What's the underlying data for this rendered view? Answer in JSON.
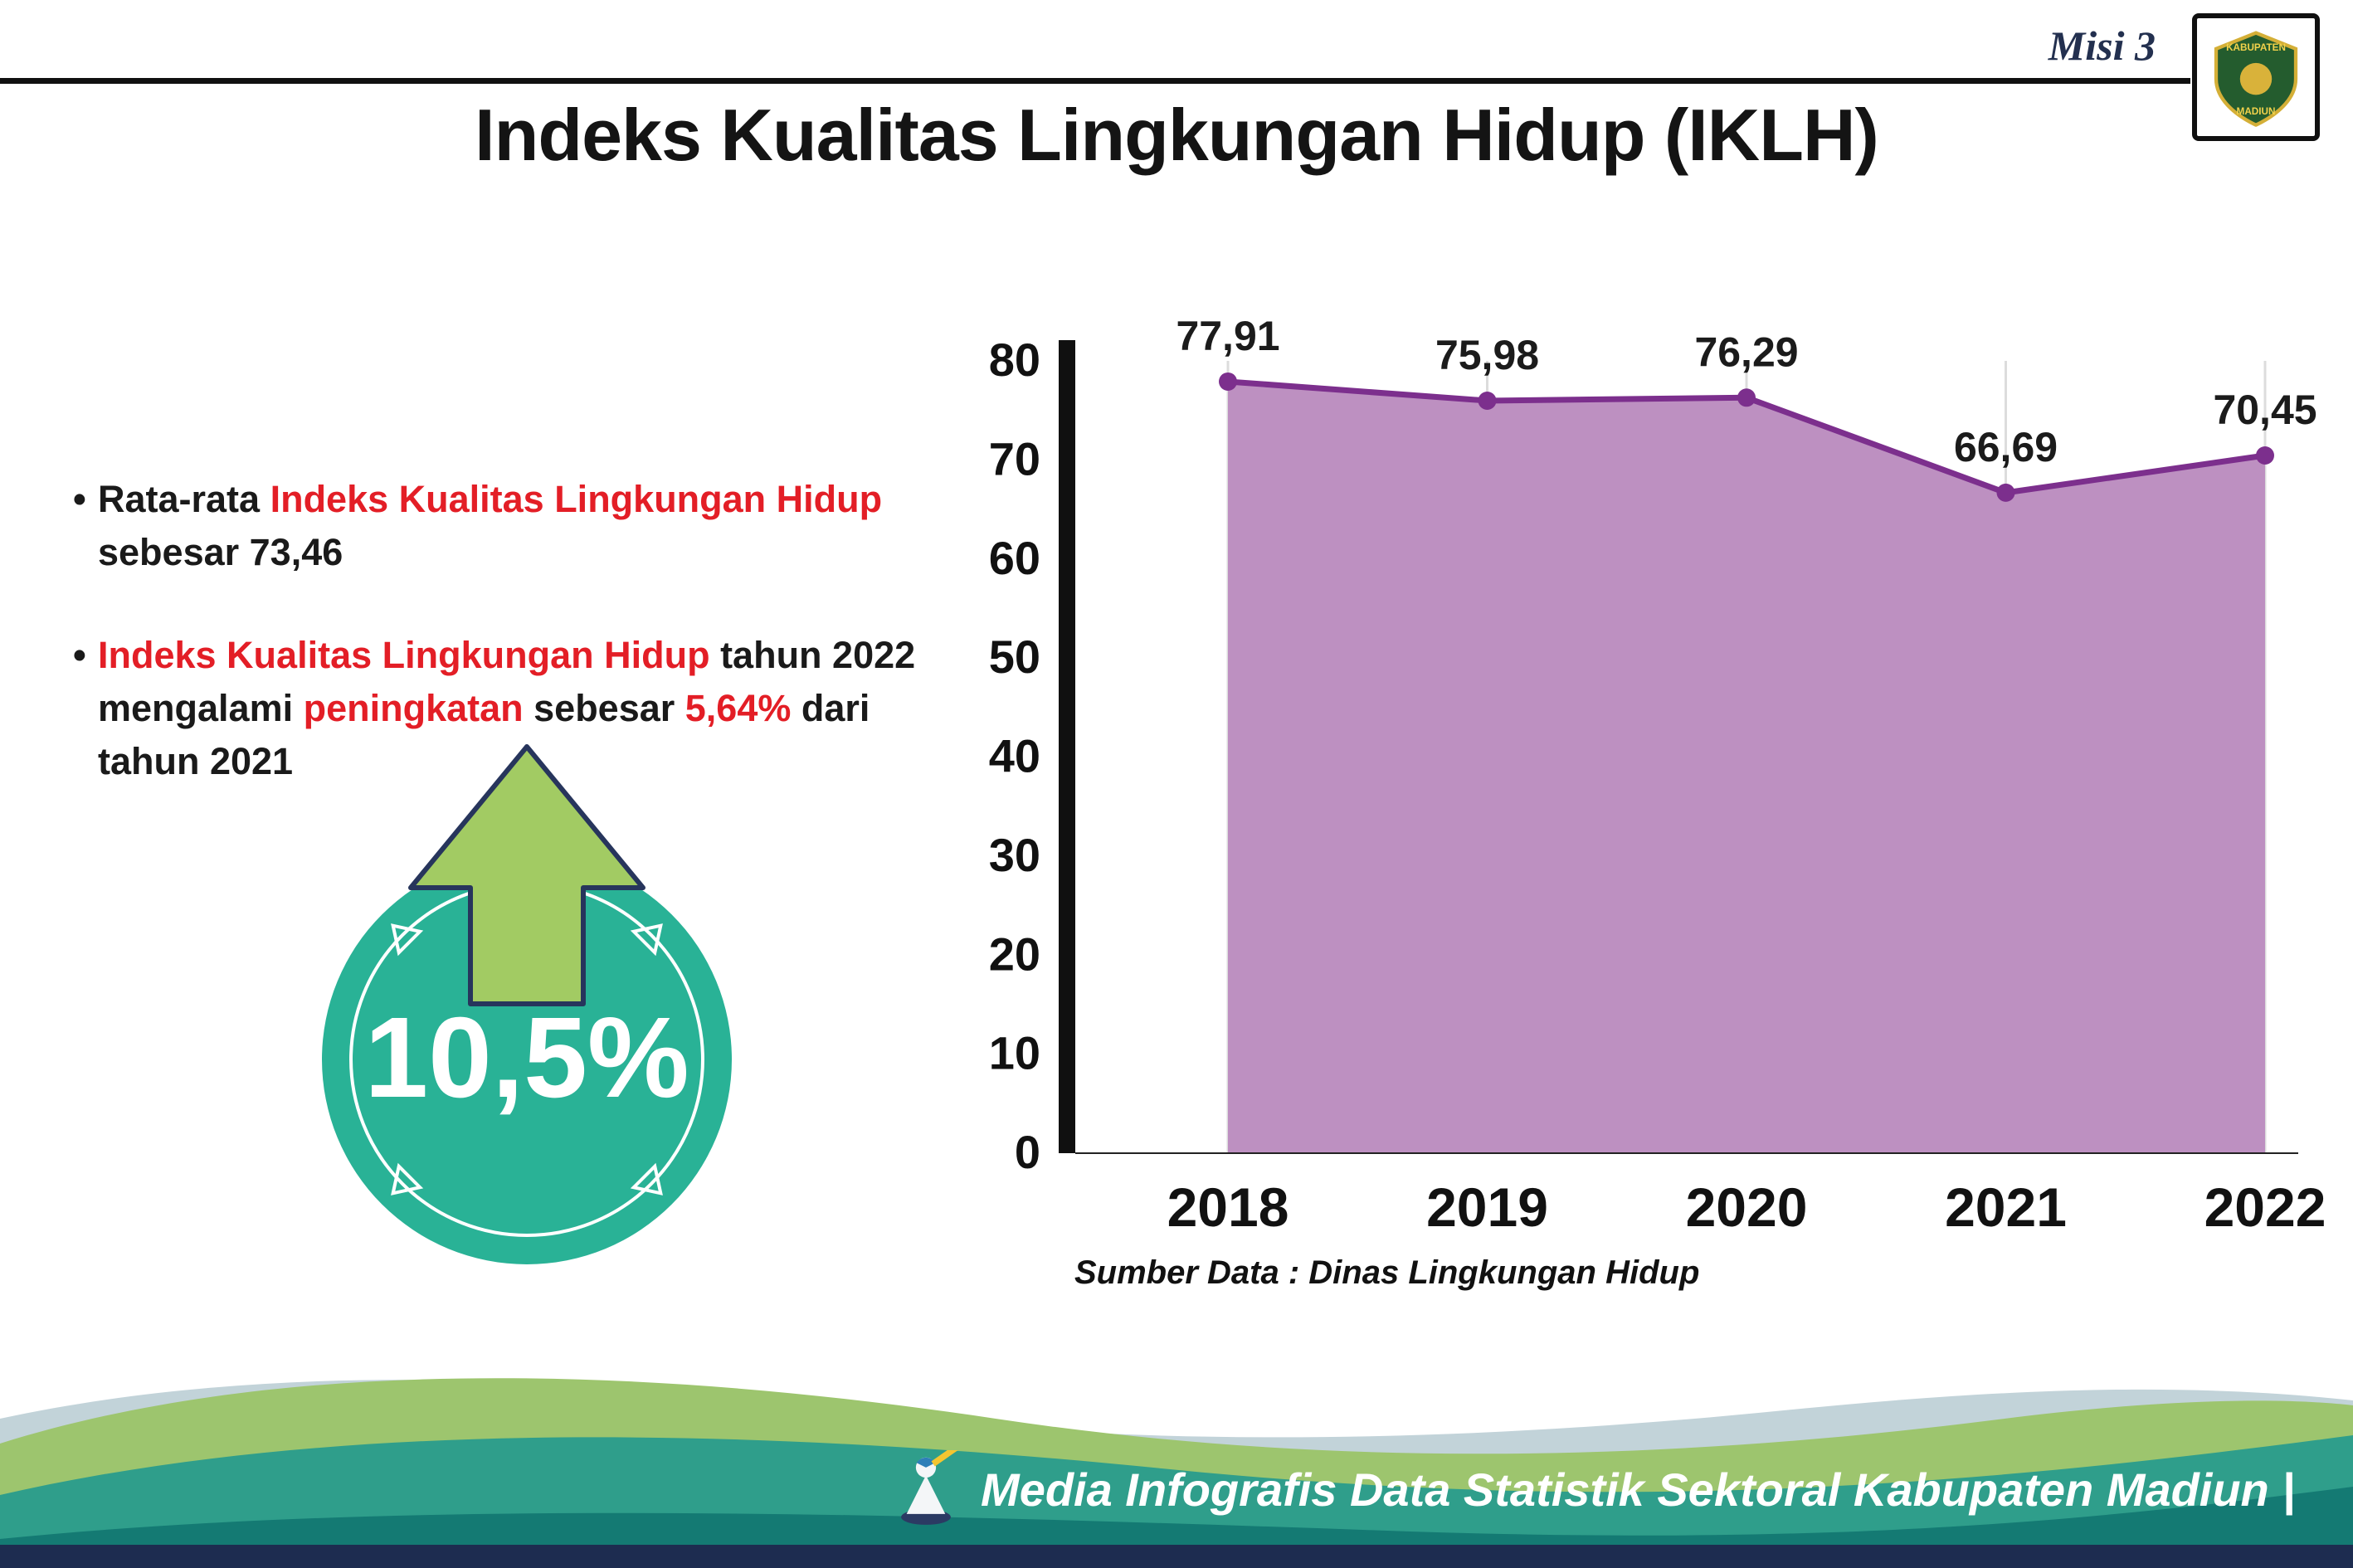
{
  "header": {
    "misi": "Misi 3",
    "title": "Indeks Kualitas Lingkungan Hidup (IKLH)",
    "logo": {
      "line1": "KABUPATEN",
      "line2": "MADIUN"
    }
  },
  "bullets": {
    "marker": "•",
    "b1": {
      "s1": "Rata-rata ",
      "s2": "Indeks Kualitas Lingkungan Hidup",
      "s3": " sebesar 73,46"
    },
    "b2": {
      "s1": "Indeks Kualitas Lingkungan Hidup",
      "s2": " tahun 2022 mengalami ",
      "s3": "peningkatan",
      "s4": " sebesar ",
      "s5": "5,64%",
      "s6": " dari tahun 2021"
    }
  },
  "badge": {
    "value": "10,5%"
  },
  "chart_data": {
    "type": "area",
    "title": "",
    "categories": [
      "2018",
      "2019",
      "2020",
      "2021",
      "2022"
    ],
    "values": [
      77.91,
      75.98,
      76.29,
      66.69,
      70.45
    ],
    "value_labels": [
      "77,91",
      "75,98",
      "76,29",
      "66,69",
      "70,45"
    ],
    "ylim": [
      0,
      80
    ],
    "yticks": [
      0,
      10,
      20,
      30,
      40,
      50,
      60,
      70,
      80
    ],
    "grid": "vertical-light",
    "legend": "none",
    "fill_color": "#bd90c1",
    "line_color": "#7c2f8d",
    "source_note": "Sumber Data : Dinas Lingkungan Hidup"
  },
  "footer": {
    "caption": "Media Infografis Data Statistik Sektoral Kabupaten Madiun |"
  },
  "colors": {
    "accent_red": "#e31e26",
    "badge_teal": "#29b296",
    "arrow_green": "#a2cb63",
    "navy": "#1d2c50"
  }
}
